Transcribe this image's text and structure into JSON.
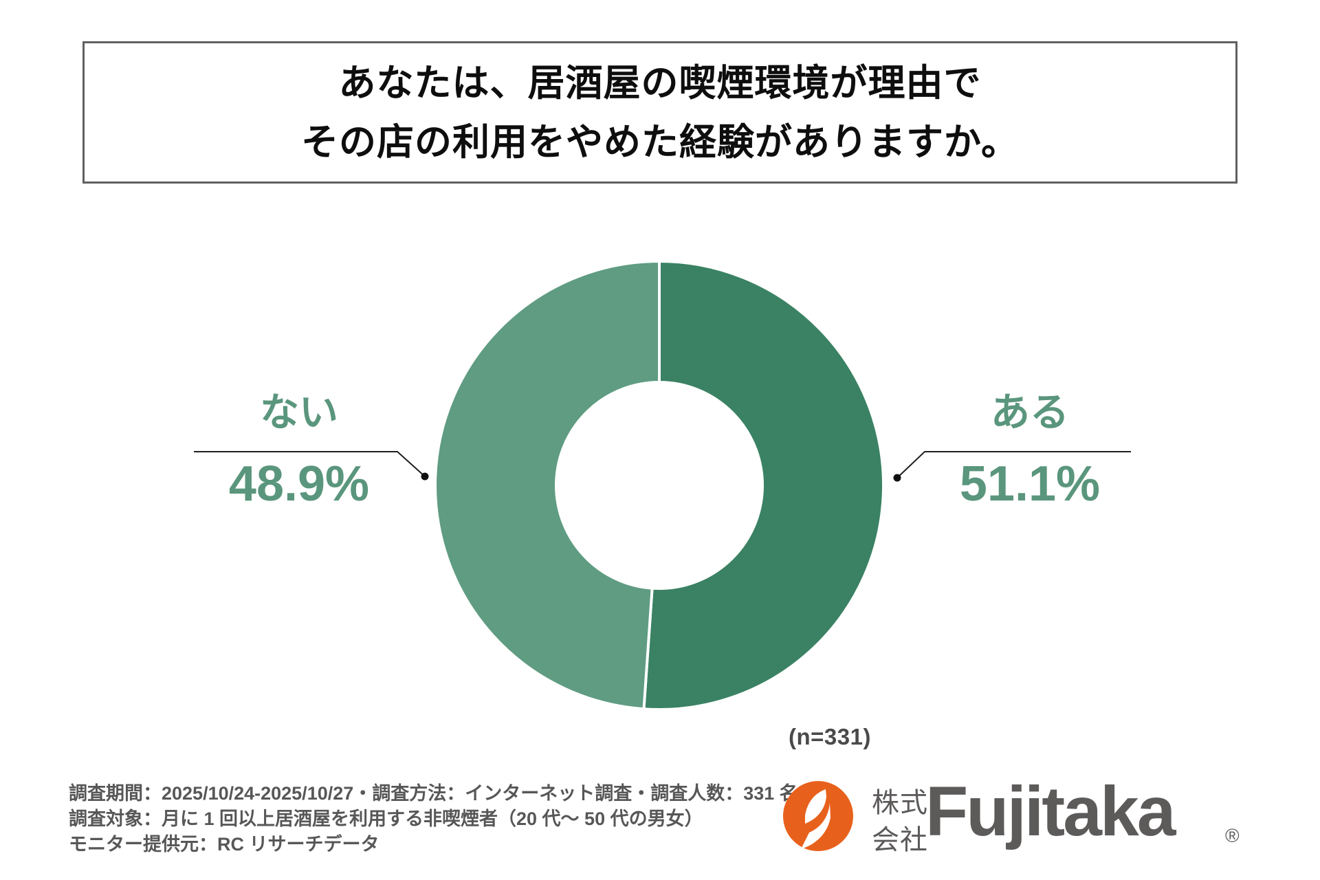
{
  "header": {
    "title_line1": "あなたは、居酒屋の喫煙環境が理由で",
    "title_line2": "その店の利用をやめた経験がありますか。"
  },
  "chart_data": {
    "type": "pie",
    "subtype": "donut",
    "title": "居酒屋の喫煙環境が理由で利用をやめた経験",
    "categories": [
      "ある",
      "ない"
    ],
    "values": [
      51.1,
      48.9
    ],
    "unit": "%",
    "colors": [
      "#3A8263",
      "#5F9C82"
    ],
    "label_text_color": "#5A967D",
    "start_angle_deg": 0,
    "sample_size": 331,
    "sample_size_label": "(n=331)",
    "labels": [
      {
        "name": "ない",
        "value_text": "48.9%",
        "side": "left"
      },
      {
        "name": "ある",
        "value_text": "51.1%",
        "side": "right"
      }
    ],
    "legend_position": "none",
    "grid": false
  },
  "footnote": {
    "line1": "調査期間：2025/10/24-2025/10/27・調査方法：インターネット調査・調査人数：331 名",
    "line2": "調査対象：月に 1 回以上居酒屋を利用する非喫煙者（20 代〜 50 代の男女）",
    "line3": "モニター提供元：RC リサーチデータ"
  },
  "logo": {
    "company_prefix_line1": "株式",
    "company_prefix_line2": "会社",
    "brand": "Fujitaka",
    "registered_mark": "®",
    "mark_color": "#E8611C",
    "text_color": "#5D5A5A"
  }
}
